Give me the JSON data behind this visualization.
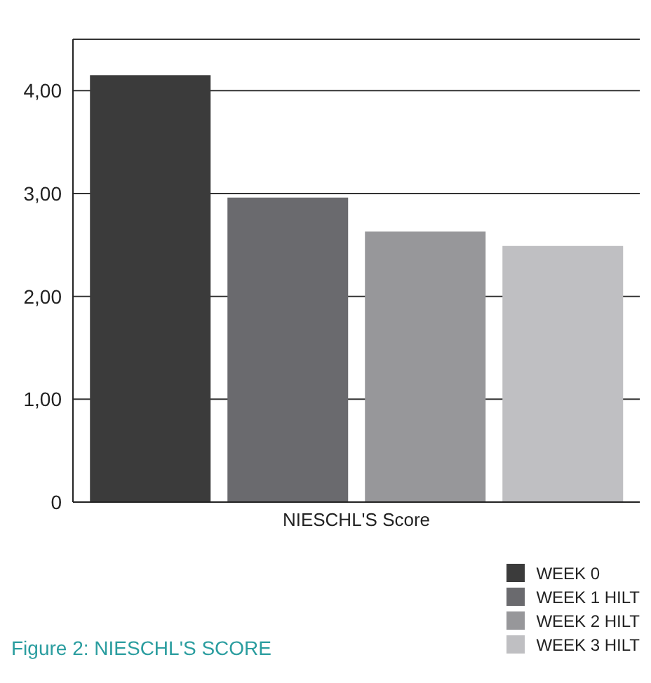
{
  "chart_data": {
    "type": "bar",
    "categories": [
      "NIESCHL'S Score"
    ],
    "series": [
      {
        "name": "WEEK 0",
        "color": "#3b3b3b",
        "values": [
          4.15
        ]
      },
      {
        "name": "WEEK 1 HILT",
        "color": "#6a6a6e",
        "values": [
          2.96
        ]
      },
      {
        "name": "WEEK 2 HILT",
        "color": "#97979a",
        "values": [
          2.63
        ]
      },
      {
        "name": "WEEK 3 HILT",
        "color": "#bfbfc2",
        "values": [
          2.49
        ]
      }
    ],
    "ylim": [
      0,
      4.5
    ],
    "yticks": [
      0,
      {
        "value": 1,
        "label": "1,00"
      },
      {
        "value": 2,
        "label": "2,00"
      },
      {
        "value": 3,
        "label": "3,00"
      },
      {
        "value": 4,
        "label": "4,00"
      }
    ],
    "grid": "y",
    "legend": "bottom right",
    "annotations": [
      "Figure 2: NIESCHL'S SCORE"
    ]
  }
}
